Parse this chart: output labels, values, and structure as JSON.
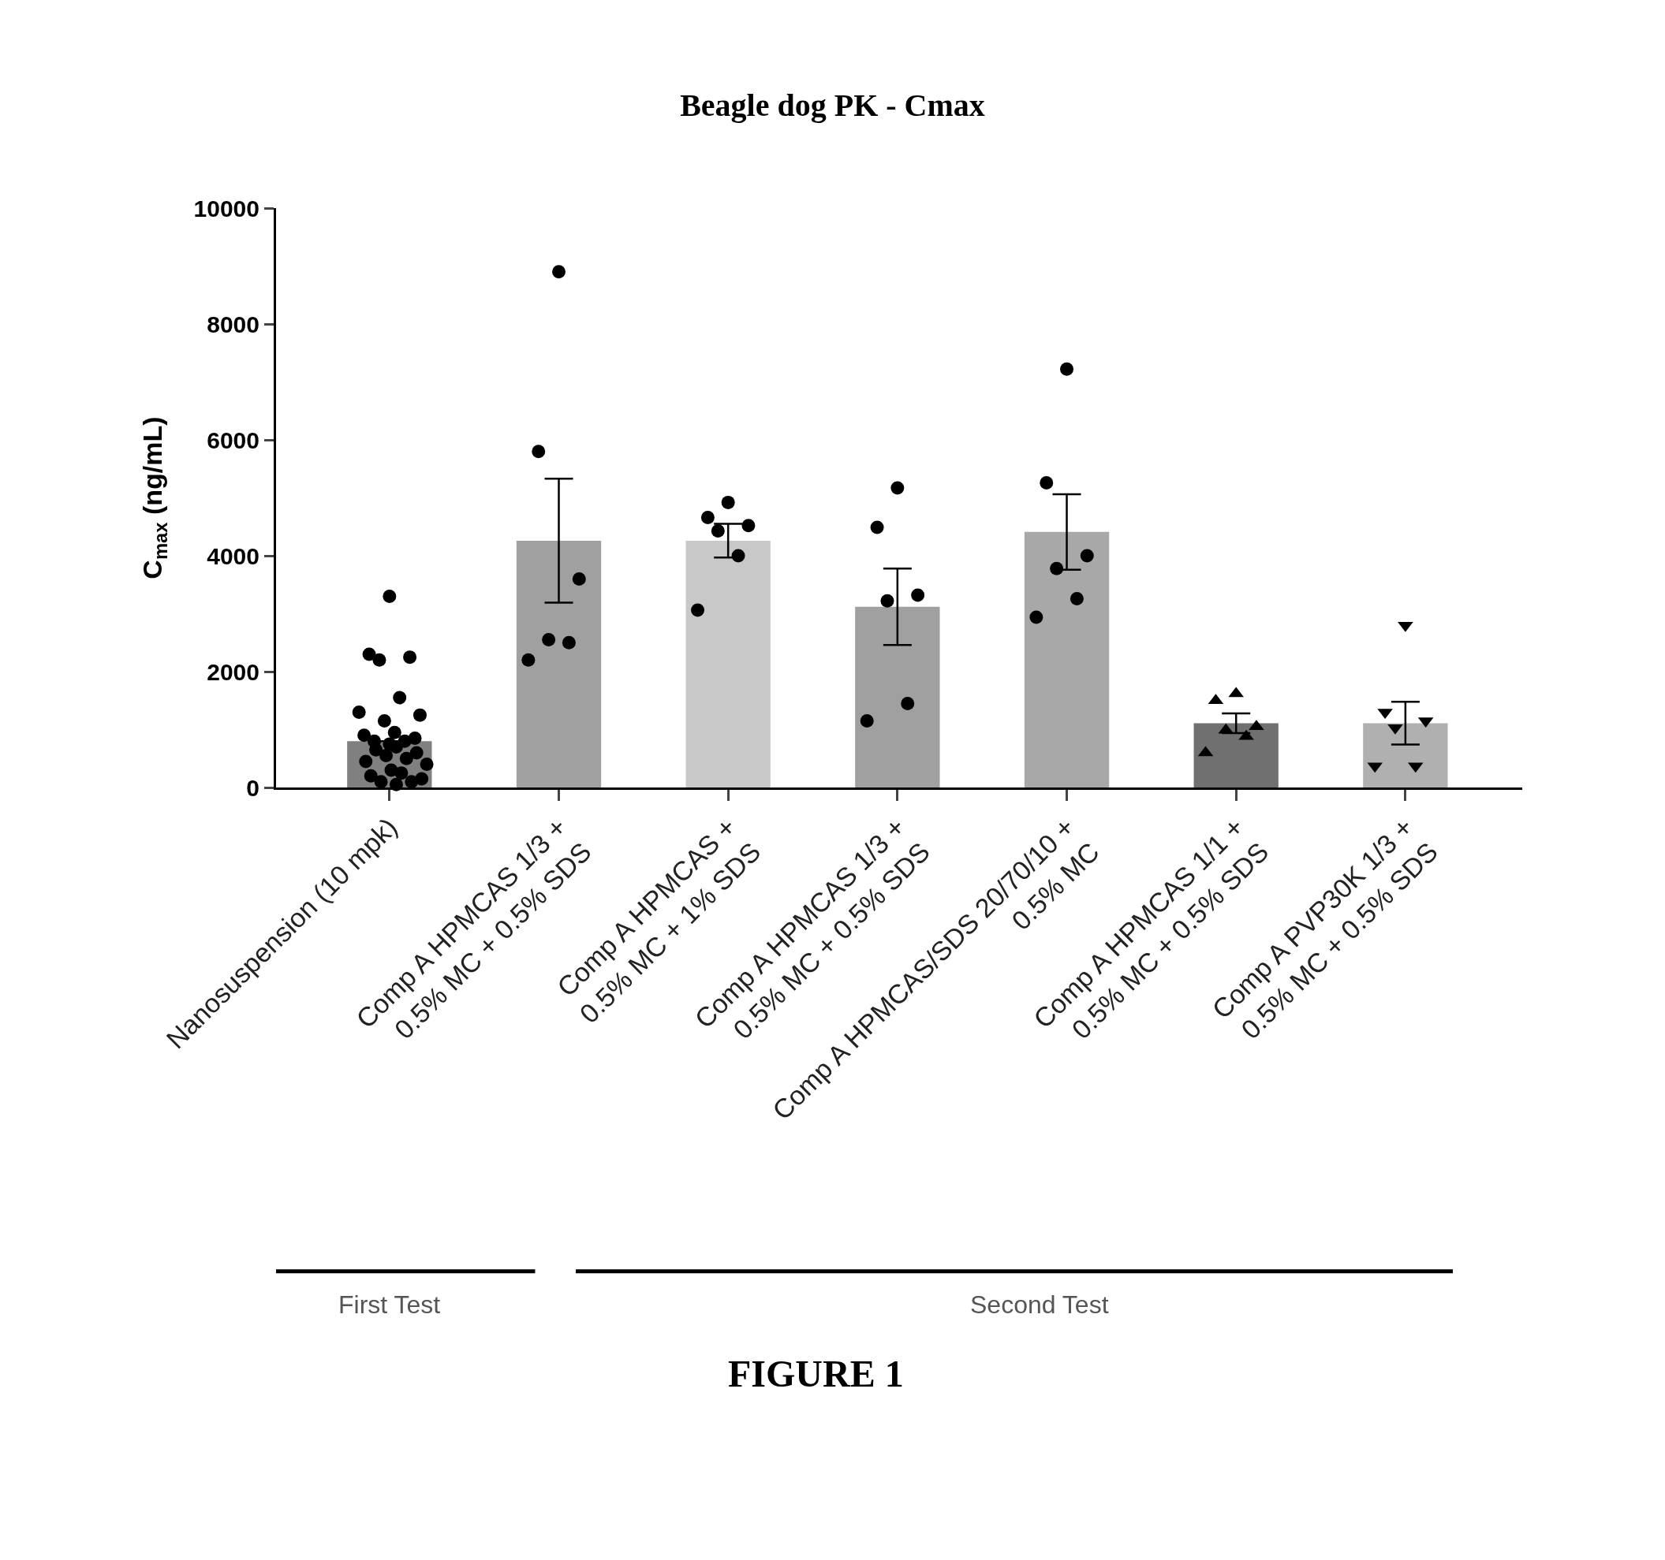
{
  "chart_data": {
    "type": "bar",
    "title": "Beagle dog PK - Cmax",
    "ylabel": "C$_{max}$ (ng/mL)",
    "categories": [
      "Nanosuspension (10 mpk)",
      "Comp A HPMCAS 1/3 +\n0.5% MC + 0.5% SDS",
      "Comp A HPMCAS +\n0.5% MC + 1% SDS",
      "Comp A HPMCAS 1/3 +\n0.5% MC + 0.5% SDS",
      "Comp A HPMCAS/SDS 20/70/10 +\n0.5% MC",
      "Comp A HPMCAS 1/1 +\n0.5% MC + 0.5% SDS",
      "Comp A PVP30K 1/3 +\n0.5% MC + 0.5% SDS"
    ],
    "series": [
      {
        "values": [
          800,
          4260,
          4260,
          3120,
          4410,
          1110,
          1110
        ],
        "colors": [
          "#808080",
          "#a0a0a0",
          "#c8c8c8",
          "#a0a0a0",
          "#a8a8a8",
          "#707070",
          "#b0b0b0"
        ],
        "errors": [
          null,
          1070,
          290,
          660,
          650,
          170,
          370
        ]
      },
      {
        "type": "scatter",
        "marker": "circle",
        "color": "#000000",
        "values": [
          3300,
          8900,
          4920,
          5170,
          7220,
          null,
          null
        ]
      },
      {
        "type": "scatter",
        "marker": "circle",
        "color": "#000000",
        "values": [
          2300,
          5800,
          4660,
          4490,
          5260,
          null,
          null
        ]
      },
      {
        "type": "scatter",
        "marker": "circle",
        "color": "#000000",
        "values": [
          2250,
          3600,
          4520,
          3320,
          4000,
          null,
          null
        ]
      },
      {
        "type": "scatter",
        "marker": "circle",
        "color": "#000000",
        "values": [
          2200,
          2550,
          4430,
          3220,
          3780,
          null,
          null
        ]
      },
      {
        "type": "scatter",
        "marker": "circle",
        "color": "#000000",
        "values": [
          1550,
          2500,
          4000,
          1450,
          3260,
          null,
          null
        ]
      },
      {
        "type": "scatter",
        "marker": "circle",
        "color": "#000000",
        "values": [
          1300,
          2200,
          3060,
          1150,
          2940,
          null,
          null
        ]
      },
      {
        "type": "scatter",
        "marker": "circle",
        "color": "#000000",
        "values": [
          1250,
          null,
          null,
          null,
          null,
          null,
          null
        ]
      },
      {
        "type": "scatter",
        "marker": "circle",
        "color": "#000000",
        "values": [
          1150,
          null,
          null,
          null,
          null,
          null,
          null
        ]
      },
      {
        "type": "scatter",
        "marker": "circle",
        "color": "#000000",
        "values": [
          950,
          null,
          null,
          null,
          null,
          null,
          null
        ]
      },
      {
        "type": "scatter",
        "marker": "circle",
        "color": "#000000",
        "values": [
          900,
          null,
          null,
          null,
          null,
          null,
          null
        ]
      },
      {
        "type": "scatter",
        "marker": "circle",
        "color": "#000000",
        "values": [
          850,
          null,
          null,
          null,
          null,
          null,
          null
        ]
      },
      {
        "type": "scatter",
        "marker": "circle",
        "color": "#000000",
        "values": [
          800,
          null,
          null,
          null,
          null,
          null,
          null
        ]
      },
      {
        "type": "scatter",
        "marker": "circle",
        "color": "#000000",
        "values": [
          800,
          null,
          null,
          null,
          null,
          null,
          null
        ]
      },
      {
        "type": "scatter",
        "marker": "circle",
        "color": "#000000",
        "values": [
          750,
          null,
          null,
          null,
          null,
          null,
          null
        ]
      },
      {
        "type": "scatter",
        "marker": "circle",
        "color": "#000000",
        "values": [
          700,
          null,
          null,
          null,
          null,
          null,
          null
        ]
      },
      {
        "type": "scatter",
        "marker": "circle",
        "color": "#000000",
        "values": [
          650,
          null,
          null,
          null,
          null,
          null,
          null
        ]
      },
      {
        "type": "scatter",
        "marker": "circle",
        "color": "#000000",
        "values": [
          600,
          null,
          null,
          null,
          null,
          null,
          null
        ]
      },
      {
        "type": "scatter",
        "marker": "circle",
        "color": "#000000",
        "values": [
          550,
          null,
          null,
          null,
          null,
          null,
          null
        ]
      },
      {
        "type": "scatter",
        "marker": "circle",
        "color": "#000000",
        "values": [
          500,
          null,
          null,
          null,
          null,
          null,
          null
        ]
      },
      {
        "type": "scatter",
        "marker": "circle",
        "color": "#000000",
        "values": [
          450,
          null,
          null,
          null,
          null,
          null,
          null
        ]
      },
      {
        "type": "scatter",
        "marker": "circle",
        "color": "#000000",
        "values": [
          400,
          null,
          null,
          null,
          null,
          null,
          null
        ]
      },
      {
        "type": "scatter",
        "marker": "circle",
        "color": "#000000",
        "values": [
          300,
          null,
          null,
          null,
          null,
          null,
          null
        ]
      },
      {
        "type": "scatter",
        "marker": "circle",
        "color": "#000000",
        "values": [
          250,
          null,
          null,
          null,
          null,
          null,
          null
        ]
      },
      {
        "type": "scatter",
        "marker": "circle",
        "color": "#000000",
        "values": [
          200,
          null,
          null,
          null,
          null,
          null,
          null
        ]
      },
      {
        "type": "scatter",
        "marker": "circle",
        "color": "#000000",
        "values": [
          150,
          null,
          null,
          null,
          null,
          null,
          null
        ]
      },
      {
        "type": "scatter",
        "marker": "circle",
        "color": "#000000",
        "values": [
          100,
          null,
          null,
          null,
          null,
          null,
          null
        ]
      },
      {
        "type": "scatter",
        "marker": "circle",
        "color": "#000000",
        "values": [
          100,
          null,
          null,
          null,
          null,
          null,
          null
        ]
      },
      {
        "type": "scatter",
        "marker": "circle",
        "color": "#000000",
        "values": [
          50,
          null,
          null,
          null,
          null,
          null,
          null
        ]
      },
      {
        "type": "scatter",
        "marker": "triangle",
        "color": "#000000",
        "values": [
          null,
          null,
          null,
          null,
          null,
          1620,
          null
        ]
      },
      {
        "type": "scatter",
        "marker": "triangle",
        "color": "#000000",
        "values": [
          null,
          null,
          null,
          null,
          null,
          1500,
          null
        ]
      },
      {
        "type": "scatter",
        "marker": "triangle",
        "color": "#000000",
        "values": [
          null,
          null,
          null,
          null,
          null,
          1050,
          null
        ]
      },
      {
        "type": "scatter",
        "marker": "triangle",
        "color": "#000000",
        "values": [
          null,
          null,
          null,
          null,
          null,
          990,
          null
        ]
      },
      {
        "type": "scatter",
        "marker": "triangle",
        "color": "#000000",
        "values": [
          null,
          null,
          null,
          null,
          null,
          880,
          null
        ]
      },
      {
        "type": "scatter",
        "marker": "triangle",
        "color": "#000000",
        "values": [
          null,
          null,
          null,
          null,
          null,
          600,
          null
        ]
      },
      {
        "type": "scatter",
        "marker": "triangle-down",
        "color": "#000000",
        "values": [
          null,
          null,
          null,
          null,
          null,
          null,
          2800
        ]
      },
      {
        "type": "scatter",
        "marker": "triangle-down",
        "color": "#000000",
        "values": [
          null,
          null,
          null,
          null,
          null,
          null,
          1300
        ]
      },
      {
        "type": "scatter",
        "marker": "triangle-down",
        "color": "#000000",
        "values": [
          null,
          null,
          null,
          null,
          null,
          null,
          1150
        ]
      },
      {
        "type": "scatter",
        "marker": "triangle-down",
        "color": "#000000",
        "values": [
          null,
          null,
          null,
          null,
          null,
          null,
          1030
        ]
      },
      {
        "type": "scatter",
        "marker": "triangle-down",
        "color": "#000000",
        "values": [
          null,
          null,
          null,
          null,
          null,
          null,
          370
        ]
      },
      {
        "type": "scatter",
        "marker": "triangle-down",
        "color": "#000000",
        "values": [
          null,
          null,
          null,
          null,
          null,
          null,
          370
        ]
      }
    ],
    "ylim": [
      0,
      10000
    ],
    "yticks": [
      0,
      2000,
      4000,
      6000,
      8000,
      10000
    ],
    "grid": false,
    "annotations": [
      "First Test",
      "Second Test",
      "FIGURE 1"
    ]
  }
}
